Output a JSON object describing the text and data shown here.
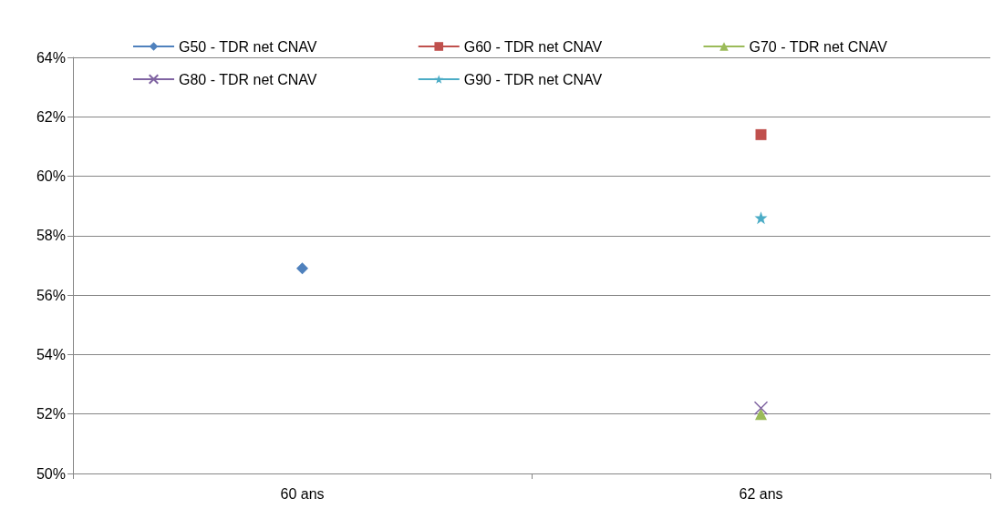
{
  "chart_data": {
    "type": "line",
    "categories": [
      "60 ans",
      "62 ans"
    ],
    "series": [
      {
        "name": "G50 - TDR net CNAV",
        "color": "#4f81bd",
        "marker": "diamond",
        "values": [
          56.9,
          null
        ]
      },
      {
        "name": "G60 - TDR net CNAV",
        "color": "#c0504d",
        "marker": "square",
        "values": [
          null,
          61.4
        ]
      },
      {
        "name": "G70 - TDR net CNAV",
        "color": "#9bbb59",
        "marker": "triangle",
        "values": [
          null,
          52.0
        ]
      },
      {
        "name": "G80 - TDR net CNAV",
        "color": "#8064a2",
        "marker": "cross",
        "values": [
          null,
          52.2
        ]
      },
      {
        "name": "G90 - TDR net CNAV",
        "color": "#4bacc6",
        "marker": "star",
        "values": [
          null,
          58.6
        ]
      }
    ],
    "ylim": [
      50,
      64
    ],
    "yticks": [
      {
        "value": 50,
        "label": "50%"
      },
      {
        "value": 52,
        "label": "52%"
      },
      {
        "value": 54,
        "label": "54%"
      },
      {
        "value": 56,
        "label": "56%"
      },
      {
        "value": 58,
        "label": "58%"
      },
      {
        "value": 60,
        "label": "60%"
      },
      {
        "value": 62,
        "label": "62%"
      },
      {
        "value": 64,
        "label": "64%"
      }
    ],
    "grid": "y",
    "legend": "top"
  }
}
